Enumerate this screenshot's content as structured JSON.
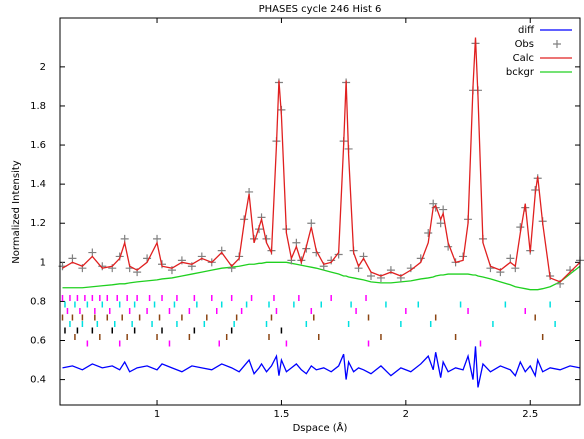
{
  "chart_data": {
    "type": "line",
    "title": "PHASES cycle 246 Hist 6",
    "x_label": "Dspace (Å)",
    "y_label": "Normalized Intensity",
    "xlim": [
      0.61,
      2.7
    ],
    "ylim": [
      0.27,
      2.25
    ],
    "xticks": [
      1,
      1.5,
      2,
      2.5
    ],
    "yticks": [
      0.4,
      0.6,
      0.8,
      1,
      1.2,
      1.4,
      1.6,
      1.8,
      2
    ],
    "x": [
      0.62,
      0.66,
      0.7,
      0.74,
      0.78,
      0.82,
      0.85,
      0.87,
      0.89,
      0.92,
      0.96,
      1.0,
      1.02,
      1.06,
      1.1,
      1.14,
      1.18,
      1.22,
      1.26,
      1.3,
      1.33,
      1.35,
      1.37,
      1.39,
      1.41,
      1.42,
      1.44,
      1.46,
      1.48,
      1.49,
      1.5,
      1.52,
      1.54,
      1.56,
      1.58,
      1.6,
      1.62,
      1.64,
      1.67,
      1.7,
      1.73,
      1.75,
      1.76,
      1.77,
      1.79,
      1.81,
      1.83,
      1.86,
      1.9,
      1.94,
      1.98,
      2.02,
      2.06,
      2.09,
      2.11,
      2.12,
      2.14,
      2.15,
      2.17,
      2.2,
      2.23,
      2.25,
      2.27,
      2.28,
      2.29,
      2.31,
      2.34,
      2.38,
      2.42,
      2.44,
      2.46,
      2.48,
      2.5,
      2.52,
      2.53,
      2.55,
      2.58,
      2.62,
      2.66,
      2.7
    ],
    "series": [
      {
        "name": "diff",
        "color": "#0000ff",
        "style": "line",
        "values": [
          0.46,
          0.47,
          0.45,
          0.48,
          0.46,
          0.47,
          0.45,
          0.49,
          0.44,
          0.46,
          0.47,
          0.45,
          0.48,
          0.46,
          0.44,
          0.47,
          0.46,
          0.45,
          0.48,
          0.46,
          0.44,
          0.47,
          0.5,
          0.43,
          0.46,
          0.48,
          0.44,
          0.47,
          0.52,
          0.42,
          0.5,
          0.44,
          0.46,
          0.48,
          0.45,
          0.43,
          0.47,
          0.45,
          0.46,
          0.44,
          0.47,
          0.53,
          0.4,
          0.49,
          0.44,
          0.46,
          0.45,
          0.43,
          0.47,
          0.42,
          0.46,
          0.44,
          0.48,
          0.52,
          0.45,
          0.54,
          0.41,
          0.49,
          0.44,
          0.46,
          0.45,
          0.52,
          0.4,
          0.57,
          0.36,
          0.48,
          0.44,
          0.47,
          0.45,
          0.42,
          0.49,
          0.44,
          0.47,
          0.42,
          0.5,
          0.44,
          0.46,
          0.45,
          0.47,
          0.46
        ]
      },
      {
        "name": "Obs",
        "color": "#808080",
        "style": "plus",
        "values": [
          0.98,
          1.02,
          0.97,
          1.05,
          0.98,
          0.97,
          1.03,
          1.12,
          0.97,
          0.95,
          1.02,
          1.12,
          0.99,
          0.96,
          1.01,
          0.98,
          1.03,
          1.0,
          1.06,
          0.97,
          1.03,
          1.22,
          1.36,
          1.12,
          1.17,
          1.23,
          1.12,
          1.06,
          1.62,
          1.92,
          1.78,
          1.17,
          1.01,
          1.1,
          1.01,
          1.07,
          1.2,
          1.05,
          0.98,
          1.01,
          1.04,
          1.62,
          1.92,
          1.58,
          1.06,
          0.97,
          1.03,
          0.93,
          0.92,
          0.96,
          0.92,
          0.97,
          1.02,
          1.15,
          1.3,
          1.28,
          1.2,
          1.27,
          1.08,
          1.0,
          1.03,
          1.22,
          1.88,
          2.12,
          1.88,
          1.12,
          0.97,
          0.95,
          1.02,
          0.97,
          1.18,
          1.28,
          1.06,
          1.37,
          1.43,
          1.21,
          0.93,
          0.89,
          0.96,
          1.01
        ]
      },
      {
        "name": "Calc",
        "color": "#e02020",
        "style": "line",
        "values": [
          0.97,
          1.0,
          0.98,
          1.03,
          0.97,
          0.98,
          1.02,
          1.1,
          0.98,
          0.96,
          1.0,
          1.1,
          0.98,
          0.97,
          1.0,
          0.99,
          1.02,
          1.0,
          1.05,
          0.98,
          1.02,
          1.2,
          1.35,
          1.1,
          1.18,
          1.22,
          1.1,
          1.05,
          1.6,
          1.93,
          1.75,
          1.15,
          1.02,
          1.08,
          1.0,
          1.08,
          1.18,
          1.06,
          0.99,
          1.0,
          1.05,
          1.6,
          1.93,
          1.55,
          1.05,
          0.98,
          1.02,
          0.95,
          0.93,
          0.95,
          0.93,
          0.96,
          1.0,
          1.1,
          1.28,
          1.29,
          1.22,
          1.25,
          1.1,
          1.0,
          1.01,
          1.2,
          1.9,
          2.15,
          1.85,
          1.1,
          0.98,
          0.96,
          1.0,
          0.98,
          1.15,
          1.3,
          1.05,
          1.35,
          1.44,
          1.2,
          0.92,
          0.9,
          0.95,
          1.0
        ]
      },
      {
        "name": "bckgr",
        "color": "#20d020",
        "style": "line",
        "values": [
          0.87,
          0.87,
          0.87,
          0.875,
          0.88,
          0.885,
          0.89,
          0.89,
          0.895,
          0.9,
          0.905,
          0.91,
          0.915,
          0.92,
          0.93,
          0.94,
          0.95,
          0.96,
          0.97,
          0.975,
          0.98,
          0.985,
          0.99,
          0.99,
          0.995,
          0.995,
          1.0,
          1.0,
          1.0,
          1.0,
          1.0,
          1.0,
          0.995,
          0.99,
          0.985,
          0.98,
          0.975,
          0.97,
          0.96,
          0.95,
          0.94,
          0.93,
          0.93,
          0.925,
          0.92,
          0.915,
          0.91,
          0.9,
          0.895,
          0.895,
          0.9,
          0.905,
          0.915,
          0.92,
          0.925,
          0.93,
          0.935,
          0.935,
          0.94,
          0.94,
          0.94,
          0.94,
          0.935,
          0.935,
          0.93,
          0.925,
          0.915,
          0.9,
          0.885,
          0.875,
          0.87,
          0.865,
          0.86,
          0.86,
          0.86,
          0.865,
          0.875,
          0.9,
          0.94,
          0.98
        ]
      }
    ],
    "reflection_rows": [
      {
        "color": "#ff00ff",
        "positions": [
          0.62,
          0.65,
          0.68,
          0.71,
          0.74,
          0.77,
          0.8,
          0.84,
          0.88,
          0.92,
          0.97,
          1.02,
          1.08,
          1.15,
          1.22,
          1.3,
          1.38,
          1.47,
          1.57,
          1.7,
          1.84
        ]
      },
      {
        "color": "#00e0e0",
        "positions": [
          0.63,
          0.67,
          0.72,
          0.78,
          0.85,
          0.91,
          0.99,
          1.07,
          1.16,
          1.26,
          1.36,
          1.45,
          1.55,
          1.66,
          1.78,
          1.92,
          2.05,
          2.22,
          2.4,
          2.58
        ]
      },
      {
        "color": "#ff00ff",
        "positions": [
          0.64,
          0.69,
          0.75,
          0.81,
          0.89,
          0.96,
          1.05,
          1.13,
          1.24,
          1.34,
          1.48,
          1.62,
          1.8,
          2.0,
          2.25,
          2.48
        ]
      },
      {
        "color": "#8b4513",
        "positions": [
          0.62,
          0.66,
          0.7,
          0.75,
          0.8,
          0.86,
          0.93,
          1.01,
          1.1,
          1.2,
          1.32,
          1.46,
          1.63,
          1.85,
          2.12,
          2.52
        ]
      },
      {
        "color": "#00e0e0",
        "positions": [
          0.65,
          0.7,
          0.76,
          0.83,
          0.9,
          0.98,
          1.08,
          1.19,
          1.31,
          1.44,
          1.6,
          1.77,
          1.98,
          2.1,
          2.35,
          2.6
        ]
      },
      {
        "color": "#000000",
        "positions": [
          0.63,
          0.68,
          0.74,
          0.82,
          0.91,
          1.02,
          1.15,
          1.3,
          1.5
        ]
      },
      {
        "color": "#8b4513",
        "positions": [
          0.67,
          0.77,
          0.88,
          1.0,
          1.13,
          1.28,
          1.45,
          1.65,
          1.9,
          2.2,
          2.55
        ]
      },
      {
        "color": "#ff00ff",
        "positions": [
          0.72,
          0.85,
          1.05,
          1.25,
          1.52,
          1.85,
          2.3
        ]
      }
    ],
    "legend": "upper right"
  }
}
